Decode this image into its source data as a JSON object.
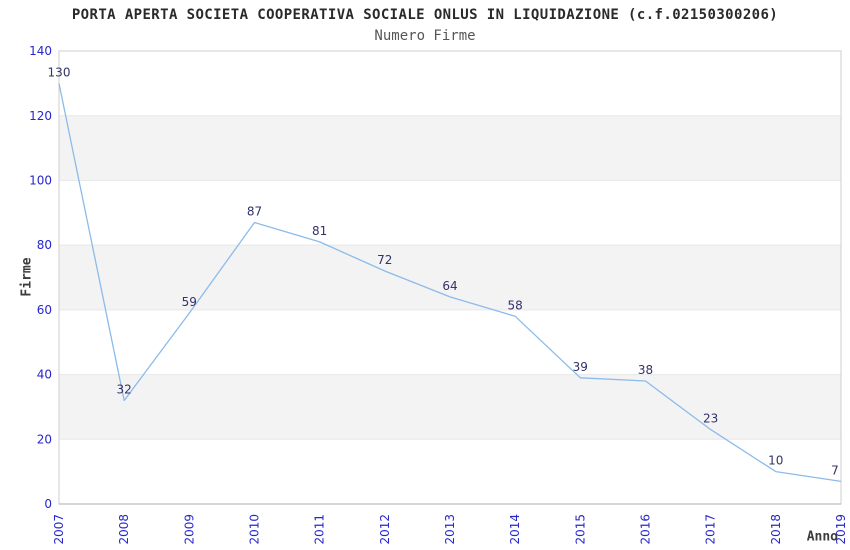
{
  "chart_data": {
    "type": "line",
    "title": "PORTA APERTA SOCIETA COOPERATIVA SOCIALE ONLUS IN LIQUIDAZIONE (c.f.02150300206)",
    "subtitle": "Numero Firme",
    "xlabel": "Anno",
    "ylabel": "Firme",
    "categories": [
      "2007",
      "2008",
      "2009",
      "2010",
      "2011",
      "2012",
      "2013",
      "2014",
      "2015",
      "2016",
      "2017",
      "2018",
      "2019"
    ],
    "values": [
      130,
      32,
      59,
      87,
      81,
      72,
      64,
      58,
      39,
      38,
      23,
      10,
      7
    ],
    "ylim": [
      0,
      140
    ],
    "ytick_step": 20,
    "yticks": [
      0,
      20,
      40,
      60,
      80,
      100,
      120,
      140
    ],
    "grid": true,
    "alternate_band_fill": true,
    "legend": "none",
    "x_tick_rotation": -90,
    "colors": {
      "line": "#8cbbea",
      "data_label": "#32326b",
      "tick_label": "#2727cd",
      "band": "#f3f3f3",
      "grid_line": "#e7e7e7",
      "plot_border": "#cfcfcf",
      "axis_line": "#adadad",
      "title": "#2a2a2a",
      "subtitle": "#565656",
      "axis_title": "#3c3c3c",
      "background": "#ffffff"
    }
  }
}
